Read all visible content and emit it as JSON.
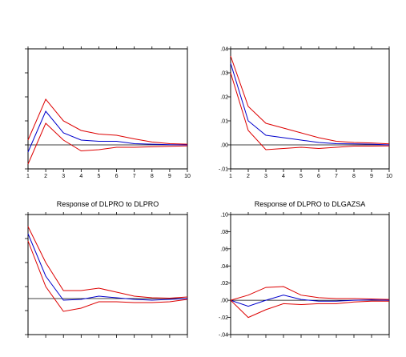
{
  "chart_data": [
    {
      "type": "line",
      "title": "",
      "x": [
        1,
        2,
        3,
        4,
        5,
        6,
        7,
        8,
        9,
        10
      ],
      "x_ticks": [
        "1",
        "2",
        "3",
        "4",
        "5",
        "6",
        "7",
        "8",
        "9",
        "10"
      ],
      "ylim": [
        -0.01,
        0.04
      ],
      "y_ticks": [],
      "grid": false,
      "series": [
        {
          "role": "response",
          "color": "#0000cc",
          "values": [
            -0.003,
            0.014,
            0.005,
            0.002,
            0.0015,
            0.0015,
            0.0005,
            0.0003,
            0.0001,
            0.0
          ]
        },
        {
          "role": "upper",
          "color": "#dd0000",
          "values": [
            0.002,
            0.019,
            0.01,
            0.006,
            0.0045,
            0.004,
            0.0025,
            0.0012,
            0.0005,
            0.0003
          ]
        },
        {
          "role": "lower",
          "color": "#dd0000",
          "values": [
            -0.008,
            0.009,
            0.002,
            -0.0025,
            -0.002,
            -0.001,
            -0.001,
            -0.0008,
            -0.0006,
            -0.0004
          ]
        }
      ]
    },
    {
      "type": "line",
      "title": "",
      "x": [
        1,
        2,
        3,
        4,
        5,
        6,
        7,
        8,
        9,
        10
      ],
      "x_ticks": [
        "1",
        "2",
        "3",
        "4",
        "5",
        "6",
        "7",
        "8",
        "9",
        "10"
      ],
      "ylim": [
        -0.01,
        0.04
      ],
      "y_ticks": [
        ".04",
        ".03",
        ".02",
        ".01",
        ".00",
        "-.01"
      ],
      "y_tick_values": [
        0.04,
        0.03,
        0.02,
        0.01,
        0.0,
        -0.01
      ],
      "grid": false,
      "series": [
        {
          "role": "response",
          "color": "#0000cc",
          "values": [
            0.034,
            0.01,
            0.004,
            0.003,
            0.002,
            0.001,
            0.0005,
            0.0004,
            0.0003,
            0.0
          ]
        },
        {
          "role": "upper",
          "color": "#dd0000",
          "values": [
            0.037,
            0.016,
            0.009,
            0.007,
            0.005,
            0.003,
            0.0015,
            0.001,
            0.0008,
            0.0004
          ]
        },
        {
          "role": "lower",
          "color": "#dd0000",
          "values": [
            0.03,
            0.006,
            -0.002,
            -0.0015,
            -0.001,
            -0.0015,
            -0.001,
            -0.0005,
            -0.0005,
            -0.0004
          ]
        }
      ]
    },
    {
      "type": "line",
      "title": "Response of DLPRO to DLPRO",
      "x": [
        1,
        2,
        3,
        4,
        5,
        6,
        7,
        8,
        9,
        10
      ],
      "x_ticks": [],
      "ylim": [
        -0.045,
        0.105
      ],
      "y_ticks": [],
      "grid": false,
      "series": [
        {
          "role": "response",
          "color": "#0000cc",
          "values": [
            0.081,
            0.028,
            -0.002,
            -0.001,
            0.003,
            0.001,
            -0.001,
            -0.002,
            -0.001,
            0.0
          ]
        },
        {
          "role": "upper",
          "color": "#dd0000",
          "values": [
            0.09,
            0.045,
            0.01,
            0.01,
            0.013,
            0.008,
            0.003,
            0.001,
            0.0005,
            0.002
          ]
        },
        {
          "role": "lower",
          "color": "#dd0000",
          "values": [
            0.072,
            0.015,
            -0.016,
            -0.012,
            -0.004,
            -0.004,
            -0.005,
            -0.005,
            -0.004,
            -0.001
          ]
        }
      ]
    },
    {
      "type": "line",
      "title": "Response of DLPRO to DLGAZSA",
      "x": [
        1,
        2,
        3,
        4,
        5,
        6,
        7,
        8,
        9,
        10
      ],
      "x_ticks": [],
      "ylim": [
        -0.04,
        0.1
      ],
      "y_ticks": [
        ".10",
        ".08",
        ".06",
        ".04",
        ".02",
        ".00",
        "-.02",
        "-.04"
      ],
      "y_tick_values": [
        0.1,
        0.08,
        0.06,
        0.04,
        0.02,
        0.0,
        -0.02,
        -0.04
      ],
      "grid": false,
      "series": [
        {
          "role": "response",
          "color": "#0000cc",
          "values": [
            0.0,
            -0.007,
            0.0,
            0.006,
            0.001,
            -0.001,
            -0.001,
            0.0,
            0.0005,
            0.0
          ]
        },
        {
          "role": "upper",
          "color": "#dd0000",
          "values": [
            0.0,
            0.006,
            0.015,
            0.016,
            0.006,
            0.003,
            0.002,
            0.002,
            0.0015,
            0.001
          ]
        },
        {
          "role": "lower",
          "color": "#dd0000",
          "values": [
            0.0,
            -0.02,
            -0.011,
            -0.004,
            -0.005,
            -0.004,
            -0.004,
            -0.002,
            -0.001,
            -0.001
          ]
        }
      ]
    }
  ]
}
